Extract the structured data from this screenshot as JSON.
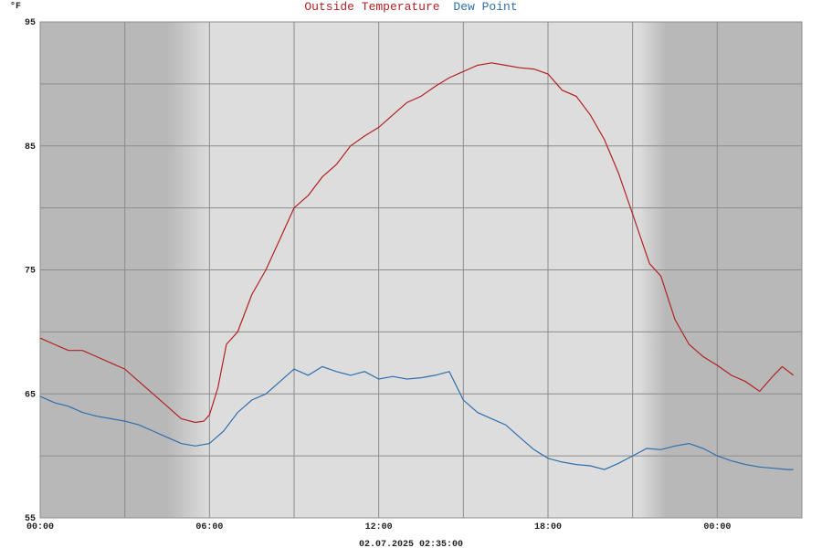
{
  "chart_data": {
    "type": "line",
    "title_parts": [
      {
        "text": "Outside Temperature",
        "color": "#b22222"
      },
      {
        "text": "Dew Point",
        "color": "#2e6fad"
      }
    ],
    "y_unit_label": "°F",
    "timestamp": "02.07.2025 02:35:00",
    "x_start_hours": 0,
    "x_end_hours": 27,
    "ylim": [
      55,
      95
    ],
    "y_ticks": [
      55,
      65,
      75,
      85,
      95
    ],
    "y_gridlines": [
      60,
      65,
      70,
      75,
      80,
      85,
      90,
      95
    ],
    "x_ticks": [
      {
        "hour": 0,
        "label": "00:00"
      },
      {
        "hour": 6,
        "label": "06:00"
      },
      {
        "hour": 12,
        "label": "12:00"
      },
      {
        "hour": 18,
        "label": "18:00"
      },
      {
        "hour": 24,
        "label": "00:00"
      }
    ],
    "x_gridlines_hours": [
      0,
      3,
      6,
      9,
      12,
      15,
      18,
      21,
      24,
      27
    ],
    "shading": {
      "night_color": "#b8b8b8",
      "day_color": "#dddddd",
      "night_segments": [
        [
          0,
          4.5
        ],
        [
          21.2,
          27
        ]
      ],
      "twilight_segments": [
        [
          4.5,
          6.0,
          "to-day"
        ],
        [
          21.2,
          22.2,
          "to-night"
        ]
      ]
    },
    "series": [
      {
        "name": "Outside Temperature",
        "color": "#b22222",
        "x": [
          0,
          0.5,
          1,
          1.5,
          2,
          2.5,
          3,
          3.5,
          4,
          4.5,
          5,
          5.5,
          5.8,
          6,
          6.3,
          6.6,
          7,
          7.5,
          8,
          8.5,
          9,
          9.5,
          10,
          10.5,
          11,
          11.5,
          12,
          12.5,
          13,
          13.5,
          14,
          14.5,
          15,
          15.5,
          16,
          16.5,
          17,
          17.5,
          18,
          18.5,
          19,
          19.5,
          20,
          20.5,
          21,
          21.3,
          21.6,
          22,
          22.5,
          23,
          23.5,
          24,
          24.5,
          25,
          25.5,
          26,
          26.3,
          26.7
        ],
        "y": [
          69.5,
          69,
          68.5,
          68.5,
          68,
          67.5,
          67,
          66,
          65,
          64,
          63,
          62.7,
          62.8,
          63.3,
          65.5,
          69,
          70,
          73,
          75,
          77.5,
          80,
          81,
          82.5,
          83.5,
          85,
          85.8,
          86.5,
          87.5,
          88.5,
          89,
          89.8,
          90.5,
          91,
          91.5,
          91.7,
          91.5,
          91.3,
          91.2,
          90.8,
          89.5,
          89,
          87.5,
          85.5,
          82.8,
          79.5,
          77.5,
          75.5,
          74.5,
          71,
          69,
          68,
          67.3,
          66.5,
          66,
          65.2,
          66.5,
          67.2,
          66.5
        ]
      },
      {
        "name": "Dew Point",
        "color": "#2e6fad",
        "x": [
          0,
          0.5,
          1,
          1.5,
          2,
          2.5,
          3,
          3.5,
          4,
          4.5,
          5,
          5.5,
          6,
          6.5,
          7,
          7.5,
          8,
          8.5,
          9,
          9.5,
          10,
          10.5,
          11,
          11.5,
          12,
          12.5,
          13,
          13.5,
          14,
          14.5,
          15,
          15.5,
          16,
          16.5,
          17,
          17.5,
          18,
          18.5,
          19,
          19.5,
          20,
          20.5,
          21,
          21.5,
          22,
          22.5,
          23,
          23.5,
          24,
          24.5,
          25,
          25.5,
          26,
          26.5,
          26.7
        ],
        "y": [
          64.8,
          64.3,
          64,
          63.5,
          63.2,
          63,
          62.8,
          62.5,
          62,
          61.5,
          61,
          60.8,
          61,
          62,
          63.5,
          64.5,
          65,
          66,
          67,
          66.5,
          67.2,
          66.8,
          66.5,
          66.8,
          66.2,
          66.4,
          66.2,
          66.3,
          66.5,
          66.8,
          64.5,
          63.5,
          63,
          62.5,
          61.5,
          60.5,
          59.8,
          59.5,
          59.3,
          59.2,
          58.9,
          59.4,
          60,
          60.6,
          60.5,
          60.8,
          61,
          60.6,
          60,
          59.6,
          59.3,
          59.1,
          59,
          58.9,
          58.9
        ]
      }
    ]
  }
}
